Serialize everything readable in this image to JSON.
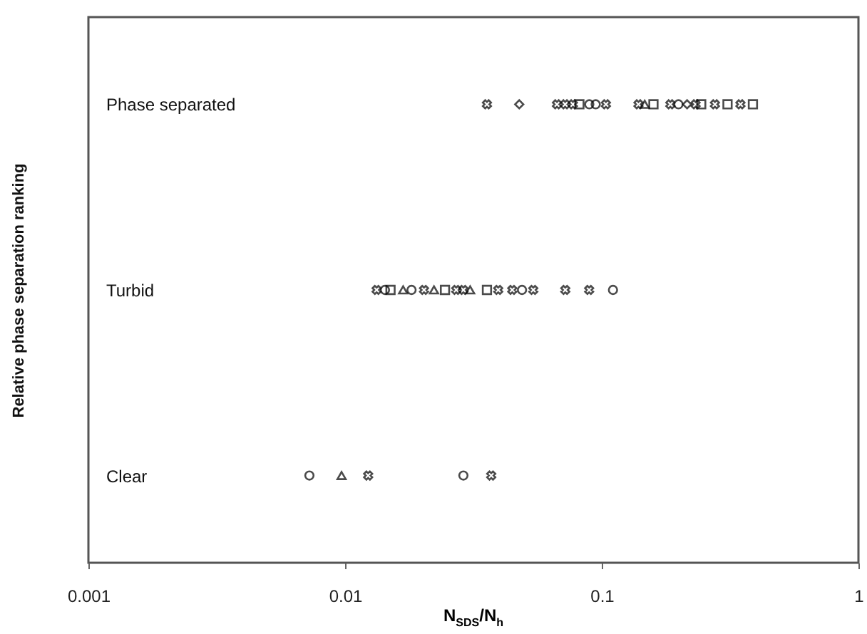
{
  "chart_data": {
    "type": "scatter",
    "orientation": "horizontal",
    "xlabel": "N$_{SDS}$/N$_{h}$",
    "ylabel": "Relative phase separation ranking",
    "log": "x",
    "xlim": [
      0.001,
      1
    ],
    "xticks": [
      0.001,
      0.01,
      0.1,
      1
    ],
    "categories": [
      "Phase separated",
      "Turbid",
      "Clear"
    ],
    "grid": false,
    "series": [
      {
        "color": "#000000",
        "marker": "circle",
        "values": [
          0.0894,
          0.0947,
          0.199,
          0.0143,
          0.01815,
          0.0489,
          0.1106,
          0.00726,
          0.0289
        ],
        "x": [
          "Phase separated",
          "Phase separated",
          "Phase separated",
          "Turbid",
          "Turbid",
          "Turbid",
          "Turbid",
          "Clear",
          "Clear"
        ]
      },
      {
        "color": "#000000",
        "marker": "triangle",
        "values": [
          0.147,
          0.01683,
          0.0222,
          0.0307,
          0.00969
        ],
        "x": [
          "Phase separated",
          "Turbid",
          "Turbid",
          "Turbid",
          "Clear"
        ]
      },
      {
        "color": "#000000",
        "marker": "square",
        "values": [
          0.0818,
          0.159,
          0.244,
          0.309,
          0.388,
          0.01503,
          0.0245,
          0.0357
        ],
        "x": [
          "Phase separated",
          "Phase separated",
          "Phase separated",
          "Phase separated",
          "Phase separated",
          "Turbid",
          "Turbid",
          "Turbid"
        ]
      },
      {
        "color": "#000000",
        "marker": "diamond",
        "values": [
          0.0477,
          0.215
        ],
        "x": [
          "Phase separated",
          "Phase separated"
        ]
      },
      {
        "color": "#000000",
        "marker": "cross",
        "values": [
          0.0357,
          0.1038,
          0.139,
          0.185,
          0.232,
          0.276,
          0.347,
          0.0669,
          0.072,
          0.0772,
          0.01327,
          0.0203,
          0.0271,
          0.0289,
          0.0395,
          0.0448,
          0.0541,
          0.0721,
          0.0893,
          0.0123,
          0.0371
        ],
        "x": [
          "Phase separated",
          "Phase separated",
          "Phase separated",
          "Phase separated",
          "Phase separated",
          "Phase separated",
          "Phase separated",
          "Phase separated",
          "Phase separated",
          "Phase separated",
          "Turbid",
          "Turbid",
          "Turbid",
          "Turbid",
          "Turbid",
          "Turbid",
          "Turbid",
          "Turbid",
          "Turbid",
          "Clear",
          "Clear"
        ]
      }
    ]
  }
}
